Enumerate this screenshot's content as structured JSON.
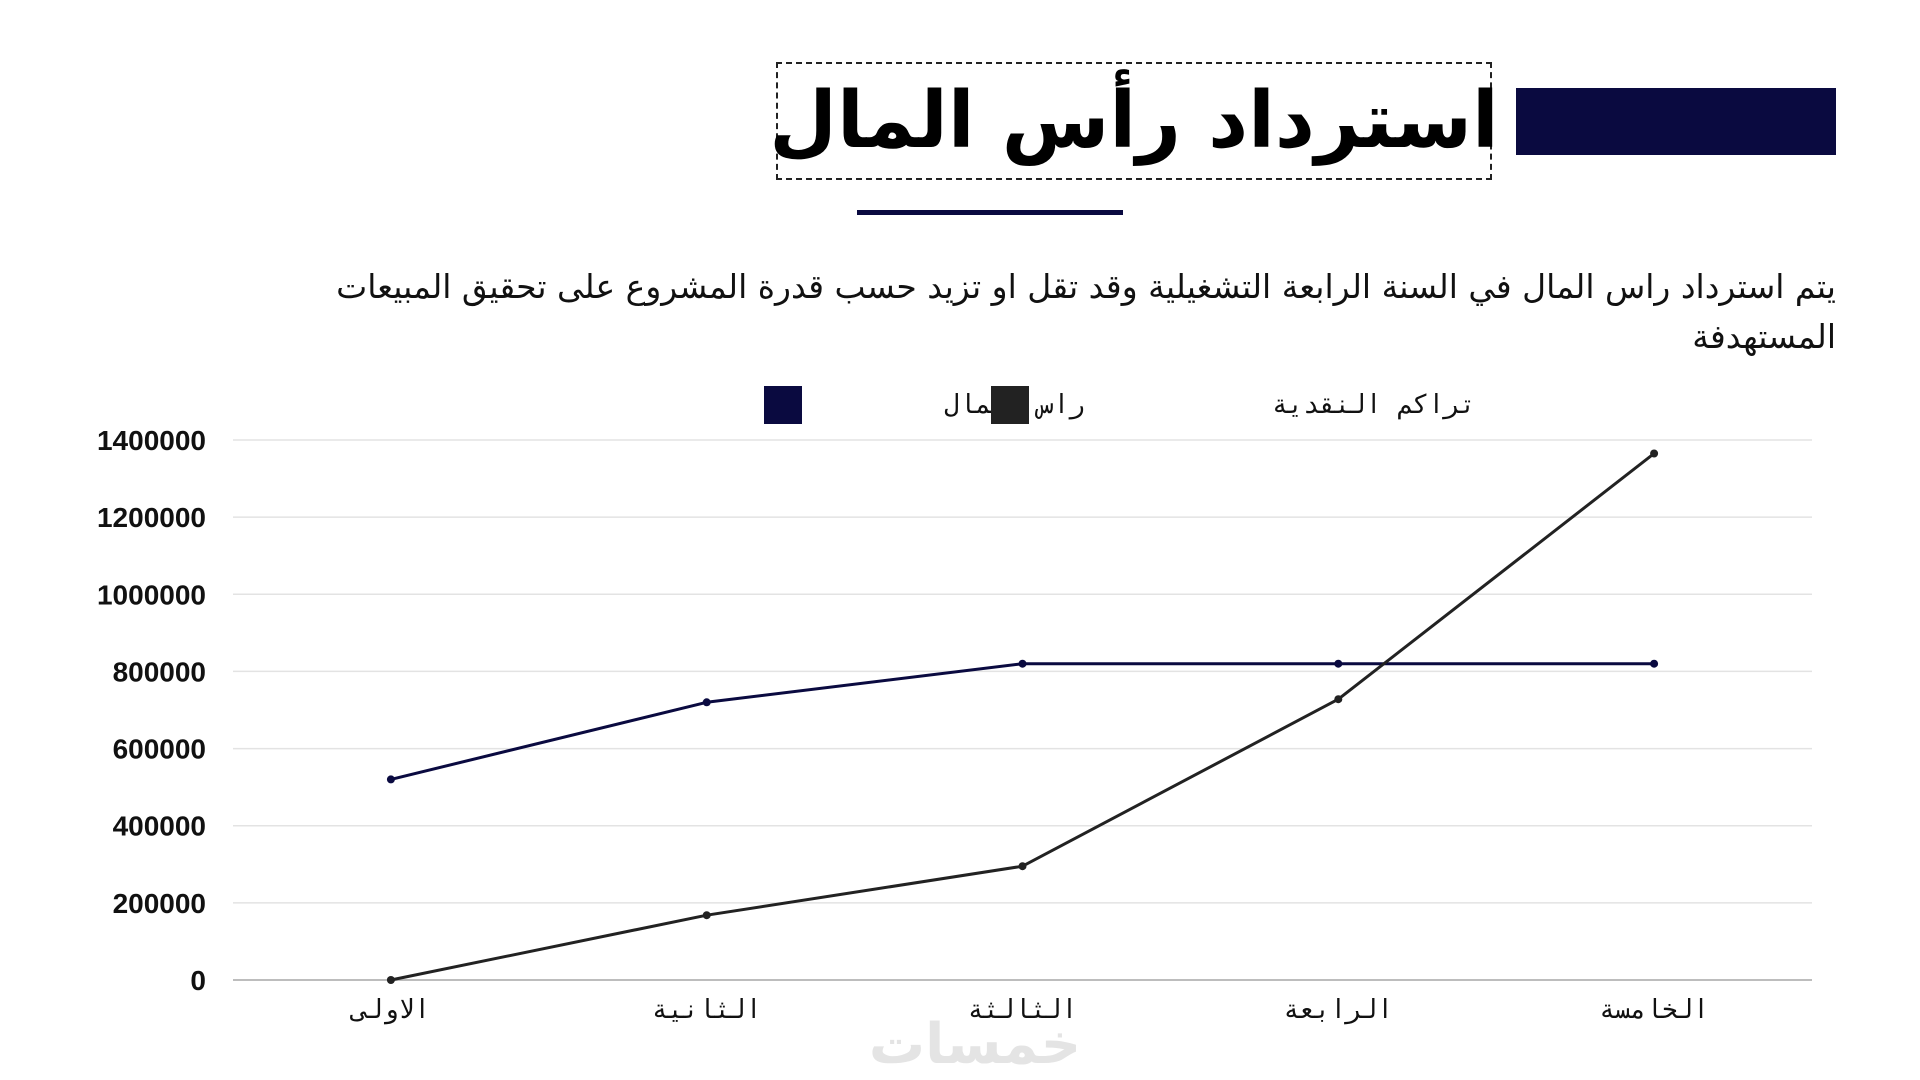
{
  "header": {
    "title": "استرداد رأس المال",
    "accent_color": "#0a0a40"
  },
  "description": "يتم استرداد راس المال في السنة الرابعة التشغيلية وقد تقل او تزيد حسب قدرة المشروع على تحقيق المبيعات المستهدفة",
  "watermark": "خمسات",
  "chart_data": {
    "type": "line",
    "categories": [
      "الاولى",
      "الثانية",
      "الثالثة",
      "الرابعة",
      "الخامسة"
    ],
    "series": [
      {
        "name": "راس المال",
        "color": "#0a0a40",
        "values": [
          520000,
          720000,
          820000,
          820000,
          820000
        ]
      },
      {
        "name": "تراكم النقدية",
        "color": "#222222",
        "values": [
          0,
          168000,
          295000,
          728000,
          1365000
        ]
      }
    ],
    "yticks": [
      0,
      200000,
      400000,
      600000,
      800000,
      1000000,
      1200000,
      1400000
    ],
    "ylim": [
      0,
      1400000
    ],
    "title": "",
    "xlabel": "",
    "ylabel": "",
    "grid": true,
    "legend": "top-center"
  }
}
